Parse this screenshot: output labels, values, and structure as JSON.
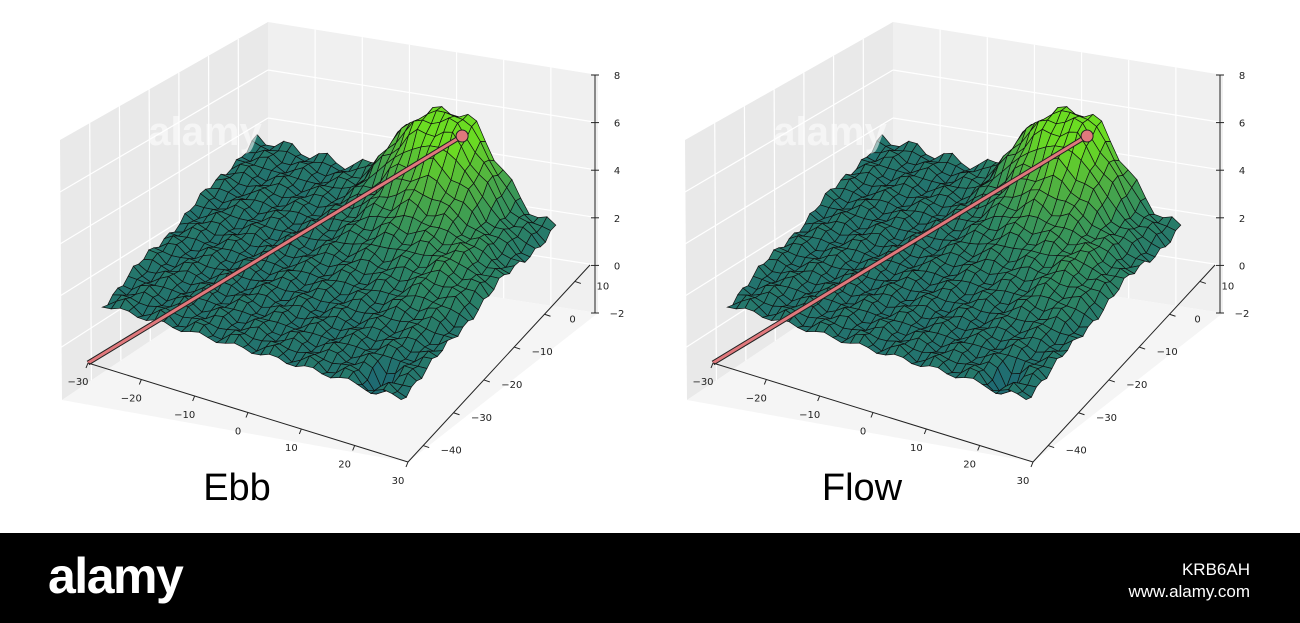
{
  "chart_data": [
    {
      "type": "surface",
      "title": "Ebb",
      "x_ticks": [
        -30,
        -20,
        -10,
        0,
        10,
        20,
        30
      ],
      "y_ticks": [
        -40,
        -30,
        -20,
        -10,
        0,
        10
      ],
      "z_ticks": [
        -2,
        0,
        2,
        4,
        6,
        8
      ],
      "xlim": [
        -30,
        30
      ],
      "ylim": [
        -45,
        15
      ],
      "zlim": [
        -2,
        8
      ],
      "colormap": [
        "#1f6b72",
        "#2f8a62",
        "#4fb043",
        "#6bdc22"
      ],
      "peak": {
        "x": 10,
        "y": 8,
        "z": 3
      },
      "line": {
        "color": "#e0787c",
        "from": {
          "x": -30,
          "y": -45,
          "z": -2
        },
        "to": {
          "x": 10,
          "y": 8,
          "z": 3
        }
      },
      "grid": true
    },
    {
      "type": "surface",
      "title": "Flow",
      "x_ticks": [
        -30,
        -20,
        -10,
        0,
        10,
        20,
        30
      ],
      "y_ticks": [
        -40,
        -30,
        -20,
        -10,
        0,
        10
      ],
      "z_ticks": [
        -2,
        0,
        2,
        4,
        6,
        8
      ],
      "xlim": [
        -30,
        30
      ],
      "ylim": [
        -45,
        15
      ],
      "zlim": [
        -2,
        8
      ],
      "colormap": [
        "#1f6b72",
        "#2f8a62",
        "#4fb043",
        "#6bdc22"
      ],
      "peak": {
        "x": 10,
        "y": 8,
        "z": 3
      },
      "line": {
        "color": "#e0787c",
        "from": {
          "x": -30,
          "y": -45,
          "z": -2
        },
        "to": {
          "x": 10,
          "y": 8,
          "z": 3
        }
      },
      "grid": true
    }
  ],
  "watermark": {
    "text": "alamy"
  },
  "footer": {
    "logo": "alamy",
    "image_id": "KRB6AH",
    "url": "www.alamy.com"
  }
}
